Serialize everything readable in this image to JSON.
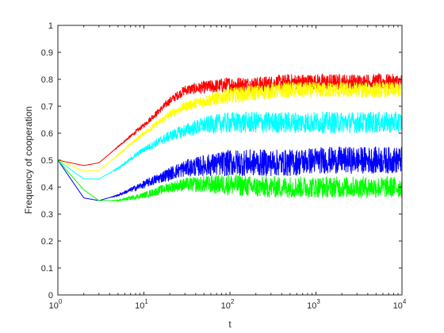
{
  "chart_data": {
    "type": "line",
    "title": "",
    "xlabel": "t",
    "ylabel": "Frequency of cooperation",
    "xscale": "log",
    "xlim": [
      1,
      10000
    ],
    "ylim": [
      0,
      1
    ],
    "grid": false,
    "legend": "none",
    "x_ticks": [
      1,
      10,
      100,
      1000,
      10000
    ],
    "x_tick_labels": [
      {
        "base": "10",
        "exp": "0"
      },
      {
        "base": "10",
        "exp": "1"
      },
      {
        "base": "10",
        "exp": "2"
      },
      {
        "base": "10",
        "exp": "3"
      },
      {
        "base": "10",
        "exp": "4"
      }
    ],
    "y_ticks": [
      0,
      0.1,
      0.2,
      0.3,
      0.4,
      0.5,
      0.6,
      0.7,
      0.8,
      0.9,
      1
    ],
    "y_tick_labels": [
      "0",
      "0.1",
      "0.2",
      "0.3",
      "0.4",
      "0.5",
      "0.6",
      "0.7",
      "0.8",
      "0.9",
      "1"
    ],
    "x": [
      1,
      2,
      3,
      5,
      10,
      20,
      30,
      50,
      100,
      200,
      500,
      1000,
      2000,
      5000,
      10000
    ],
    "series": [
      {
        "color": "#ff0000",
        "noise": 0.03,
        "values": [
          0.5,
          0.48,
          0.49,
          0.55,
          0.63,
          0.72,
          0.76,
          0.77,
          0.78,
          0.78,
          0.79,
          0.79,
          0.79,
          0.79,
          0.79
        ]
      },
      {
        "color": "#ffff00",
        "noise": 0.03,
        "values": [
          0.5,
          0.46,
          0.46,
          0.52,
          0.6,
          0.67,
          0.7,
          0.72,
          0.74,
          0.75,
          0.76,
          0.76,
          0.76,
          0.76,
          0.76
        ]
      },
      {
        "color": "#00ffff",
        "noise": 0.04,
        "values": [
          0.5,
          0.43,
          0.43,
          0.47,
          0.54,
          0.59,
          0.61,
          0.63,
          0.64,
          0.64,
          0.64,
          0.64,
          0.64,
          0.64,
          0.64
        ]
      },
      {
        "color": "#0000ff",
        "noise": 0.05,
        "values": [
          0.5,
          0.36,
          0.35,
          0.37,
          0.41,
          0.45,
          0.47,
          0.48,
          0.49,
          0.49,
          0.49,
          0.5,
          0.5,
          0.5,
          0.5
        ]
      },
      {
        "color": "#00ff00",
        "noise": 0.04,
        "values": [
          0.5,
          0.39,
          0.35,
          0.35,
          0.37,
          0.4,
          0.41,
          0.41,
          0.41,
          0.4,
          0.4,
          0.4,
          0.4,
          0.4,
          0.4
        ]
      }
    ]
  }
}
